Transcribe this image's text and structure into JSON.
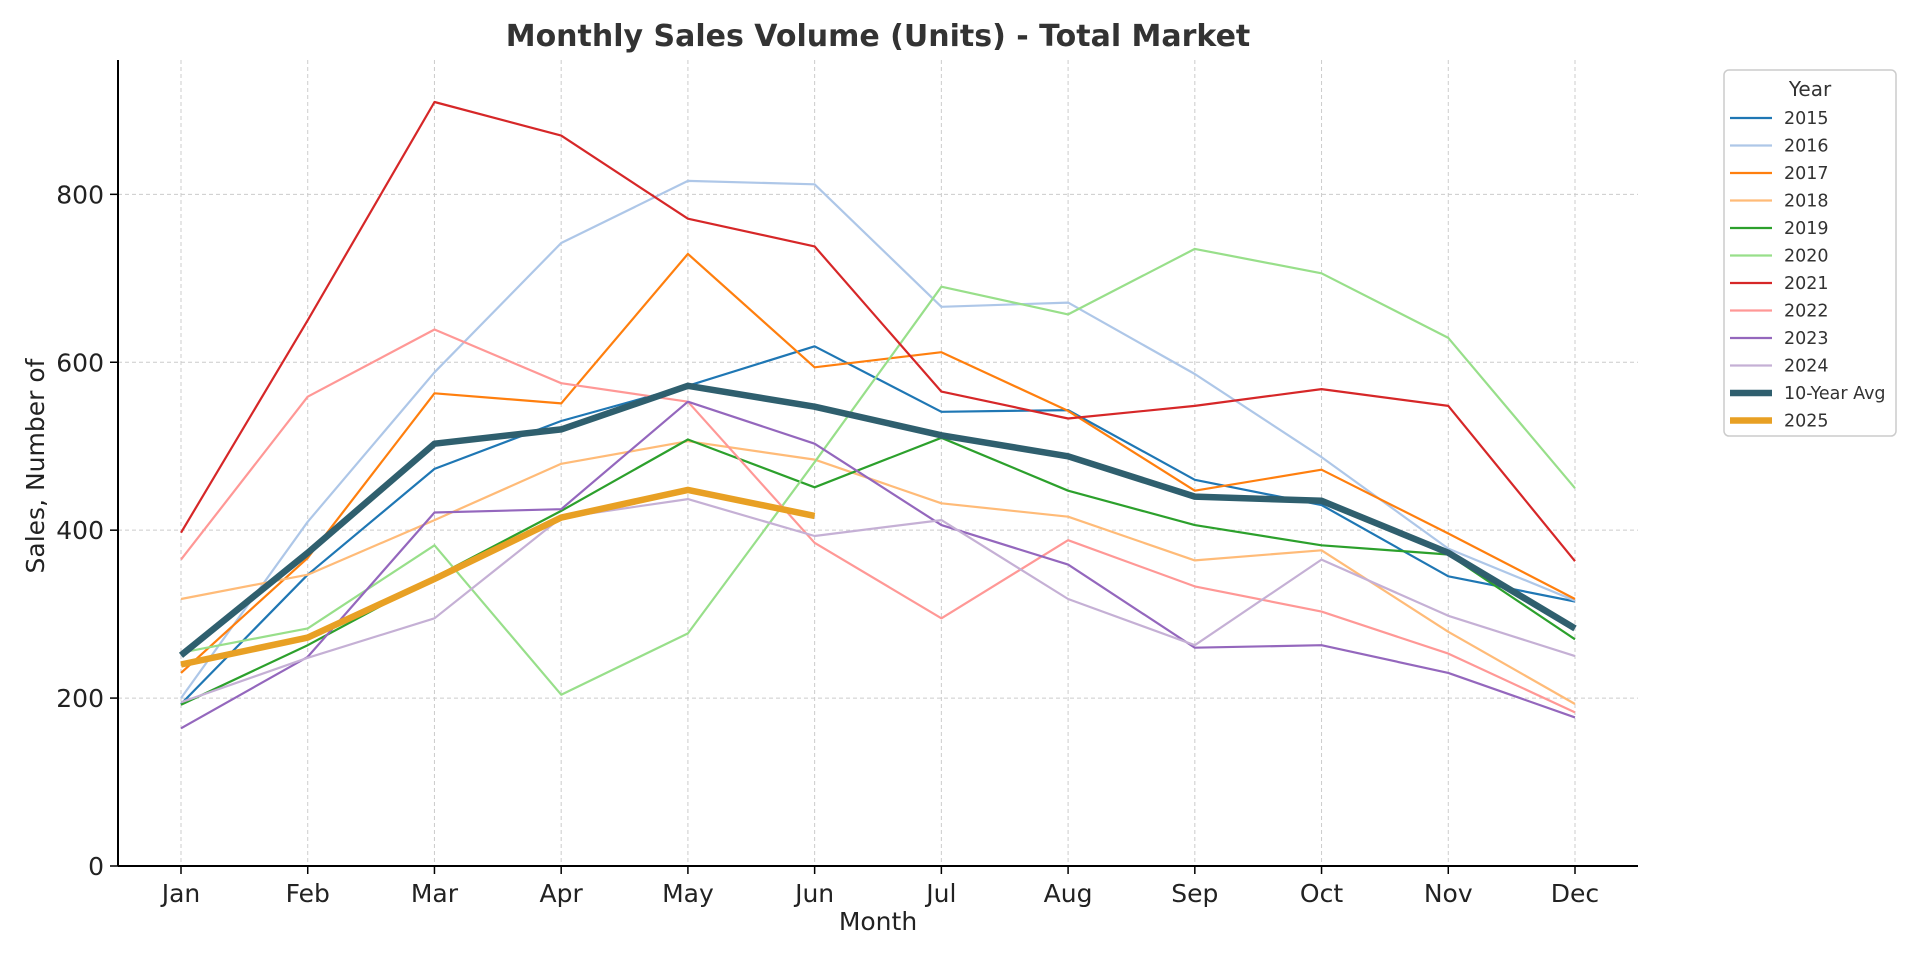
{
  "chart_data": {
    "type": "line",
    "title": "Monthly Sales Volume (Units) - Total Market",
    "xlabel": "Month",
    "ylabel": "Sales, Number of",
    "categories": [
      "Jan",
      "Feb",
      "Mar",
      "Apr",
      "May",
      "Jun",
      "Jul",
      "Aug",
      "Sep",
      "Oct",
      "Nov",
      "Dec"
    ],
    "ylim": [
      0,
      960
    ],
    "yticks": [
      0,
      200,
      400,
      600,
      800
    ],
    "grid": true,
    "legend": {
      "title": "Year",
      "placement": "outside-top-right"
    },
    "series": [
      {
        "name": "2015",
        "color": "#1f77b4",
        "values": [
          193,
          347,
          473,
          530,
          572,
          619,
          541,
          543,
          460,
          430,
          345,
          315
        ]
      },
      {
        "name": "2016",
        "color": "#aec7e8",
        "values": [
          200,
          410,
          588,
          742,
          816,
          812,
          666,
          671,
          586,
          487,
          378,
          316
        ]
      },
      {
        "name": "2017",
        "color": "#ff7f0e",
        "values": [
          230,
          367,
          563,
          551,
          729,
          594,
          612,
          542,
          447,
          472,
          396,
          318
        ]
      },
      {
        "name": "2018",
        "color": "#ffbb78",
        "values": [
          318,
          347,
          412,
          479,
          506,
          484,
          432,
          416,
          364,
          376,
          279,
          193
        ]
      },
      {
        "name": "2019",
        "color": "#2ca02c",
        "values": [
          192,
          263,
          344,
          423,
          508,
          451,
          510,
          447,
          406,
          382,
          371,
          270
        ]
      },
      {
        "name": "2020",
        "color": "#98df8a",
        "values": [
          254,
          283,
          382,
          204,
          277,
          481,
          690,
          657,
          735,
          706,
          629,
          450
        ]
      },
      {
        "name": "2021",
        "color": "#d62728",
        "values": [
          397,
          650,
          910,
          870,
          771,
          738,
          565,
          533,
          548,
          568,
          548,
          363
        ]
      },
      {
        "name": "2022",
        "color": "#ff9896",
        "values": [
          365,
          559,
          639,
          575,
          553,
          385,
          295,
          388,
          333,
          303,
          253,
          183
        ]
      },
      {
        "name": "2023",
        "color": "#9467bd",
        "values": [
          164,
          249,
          421,
          425,
          553,
          503,
          406,
          359,
          260,
          263,
          230,
          177
        ]
      },
      {
        "name": "2024",
        "color": "#c5b0d5",
        "values": [
          195,
          248,
          295,
          415,
          437,
          393,
          412,
          318,
          263,
          365,
          298,
          250
        ]
      },
      {
        "name": "10-Year Avg",
        "color": "#2f5f6e",
        "values": [
          251,
          373,
          503,
          520,
          572,
          547,
          513,
          488,
          440,
          435,
          373,
          283
        ]
      },
      {
        "name": "2025",
        "color": "#e8a024",
        "values": [
          240,
          272,
          342,
          415,
          448,
          417,
          null,
          null,
          null,
          null,
          null,
          null
        ]
      }
    ]
  }
}
